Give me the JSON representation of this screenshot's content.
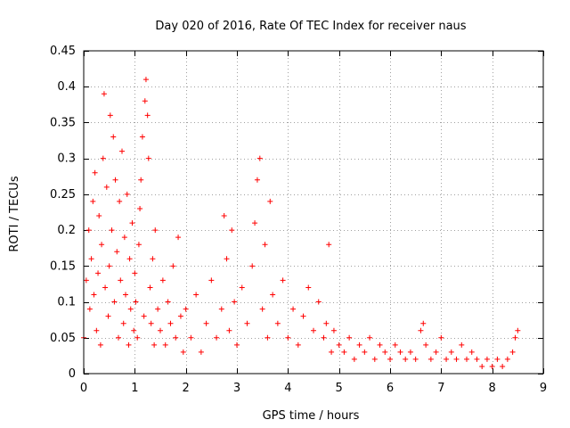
{
  "chart_data": {
    "type": "scatter",
    "title": "Day 020 of 2016, Rate Of TEC Index for receiver naus",
    "xlabel": "GPS time / hours",
    "ylabel": "ROTI / TECUs",
    "xlim": [
      0,
      9
    ],
    "ylim": [
      0,
      0.45
    ],
    "xticks": [
      0,
      1,
      2,
      3,
      4,
      5,
      6,
      7,
      8,
      9
    ],
    "yticks": [
      0,
      0.05,
      0.1,
      0.15,
      0.2,
      0.25,
      0.3,
      0.35,
      0.4,
      0.45
    ],
    "xtick_labels": [
      "0",
      "1",
      "2",
      "3",
      "4",
      "5",
      "6",
      "7",
      "8",
      "9"
    ],
    "ytick_labels": [
      "0",
      "0.05",
      "0.1",
      "0.15",
      "0.2",
      "0.25",
      "0.3",
      "0.35",
      "0.4",
      "0.45"
    ],
    "grid": true,
    "marker": "+",
    "color": "#ff0000",
    "series": [
      {
        "name": "ROTI",
        "x": [
          0.0,
          0.05,
          0.1,
          0.12,
          0.15,
          0.18,
          0.2,
          0.22,
          0.25,
          0.28,
          0.3,
          0.33,
          0.35,
          0.38,
          0.4,
          0.42,
          0.45,
          0.48,
          0.5,
          0.52,
          0.55,
          0.58,
          0.6,
          0.62,
          0.65,
          0.68,
          0.7,
          0.72,
          0.75,
          0.78,
          0.8,
          0.82,
          0.85,
          0.88,
          0.9,
          0.92,
          0.95,
          0.98,
          1.0,
          1.02,
          1.05,
          1.08,
          1.1,
          1.12,
          1.15,
          1.18,
          1.2,
          1.22,
          1.25,
          1.27,
          1.3,
          1.32,
          1.35,
          1.38,
          1.4,
          1.45,
          1.5,
          1.55,
          1.6,
          1.65,
          1.7,
          1.75,
          1.8,
          1.85,
          1.9,
          1.95,
          2.0,
          2.1,
          2.2,
          2.3,
          2.4,
          2.5,
          2.6,
          2.7,
          2.75,
          2.8,
          2.85,
          2.9,
          2.95,
          3.0,
          3.1,
          3.2,
          3.3,
          3.35,
          3.4,
          3.45,
          3.5,
          3.55,
          3.6,
          3.65,
          3.7,
          3.8,
          3.9,
          4.0,
          4.1,
          4.2,
          4.3,
          4.4,
          4.5,
          4.6,
          4.7,
          4.75,
          4.8,
          4.85,
          4.9,
          5.0,
          5.1,
          5.2,
          5.3,
          5.4,
          5.5,
          5.6,
          5.7,
          5.8,
          5.9,
          6.0,
          6.1,
          6.2,
          6.3,
          6.4,
          6.5,
          6.6,
          6.65,
          6.7,
          6.8,
          6.9,
          7.0,
          7.1,
          7.2,
          7.3,
          7.4,
          7.5,
          7.6,
          7.7,
          7.8,
          7.9,
          8.0,
          8.1,
          8.2,
          8.3,
          8.4,
          8.45,
          8.5
        ],
        "y": [
          0.05,
          0.13,
          0.2,
          0.09,
          0.16,
          0.24,
          0.11,
          0.28,
          0.06,
          0.14,
          0.22,
          0.04,
          0.18,
          0.3,
          0.39,
          0.12,
          0.26,
          0.08,
          0.15,
          0.36,
          0.2,
          0.33,
          0.1,
          0.27,
          0.17,
          0.05,
          0.24,
          0.13,
          0.31,
          0.07,
          0.19,
          0.11,
          0.25,
          0.04,
          0.16,
          0.09,
          0.21,
          0.06,
          0.14,
          0.1,
          0.05,
          0.18,
          0.23,
          0.27,
          0.33,
          0.08,
          0.38,
          0.41,
          0.36,
          0.3,
          0.12,
          0.07,
          0.16,
          0.04,
          0.2,
          0.09,
          0.06,
          0.13,
          0.04,
          0.1,
          0.07,
          0.15,
          0.05,
          0.19,
          0.08,
          0.03,
          0.09,
          0.05,
          0.11,
          0.03,
          0.07,
          0.13,
          0.05,
          0.09,
          0.22,
          0.16,
          0.06,
          0.2,
          0.1,
          0.04,
          0.12,
          0.07,
          0.15,
          0.21,
          0.27,
          0.3,
          0.09,
          0.18,
          0.05,
          0.24,
          0.11,
          0.07,
          0.13,
          0.05,
          0.09,
          0.04,
          0.08,
          0.12,
          0.06,
          0.1,
          0.05,
          0.07,
          0.18,
          0.03,
          0.06,
          0.04,
          0.03,
          0.05,
          0.02,
          0.04,
          0.03,
          0.05,
          0.02,
          0.04,
          0.03,
          0.02,
          0.04,
          0.03,
          0.02,
          0.03,
          0.02,
          0.06,
          0.07,
          0.04,
          0.02,
          0.03,
          0.05,
          0.02,
          0.03,
          0.02,
          0.04,
          0.02,
          0.03,
          0.02,
          0.01,
          0.02,
          0.01,
          0.02,
          0.01,
          0.02,
          0.03,
          0.05,
          0.06
        ]
      }
    ]
  }
}
